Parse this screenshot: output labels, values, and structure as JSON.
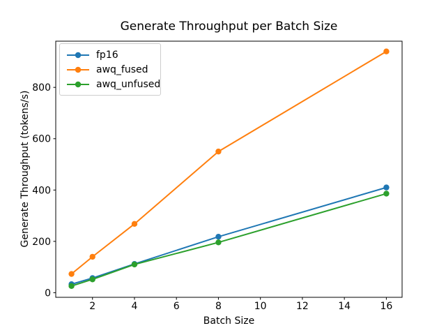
{
  "chart_data": {
    "type": "line",
    "title": "Generate Throughput per Batch Size",
    "xlabel": "Batch Size",
    "ylabel": "Generate Throughput (tokens/s)",
    "x": [
      1,
      2,
      4,
      8,
      16
    ],
    "series": [
      {
        "name": "fp16",
        "color": "#1f77b4",
        "marker": "circle",
        "values": [
          33,
          57,
          112,
          218,
          410
        ]
      },
      {
        "name": "awq_fused",
        "color": "#ff7f0e",
        "marker": "circle",
        "values": [
          73,
          140,
          268,
          550,
          940
        ]
      },
      {
        "name": "awq_unfused",
        "color": "#2ca02c",
        "marker": "circle",
        "values": [
          26,
          52,
          110,
          196,
          386
        ]
      }
    ],
    "x_ticks": [
      2,
      4,
      6,
      8,
      10,
      12,
      14,
      16
    ],
    "x_tick_labels": [
      "2",
      "4",
      "6",
      "8",
      "10",
      "12",
      "14",
      "16"
    ],
    "y_ticks": [
      0,
      200,
      400,
      600,
      800
    ],
    "y_tick_labels": [
      "0",
      "200",
      "400",
      "600",
      "800"
    ],
    "xlim": [
      0.25,
      16.75
    ],
    "ylim": [
      -18,
      980
    ],
    "grid": false,
    "legend_position": "upper left",
    "axis_color": "#000000",
    "legend_border_color": "#cccccc",
    "background_color": "#ffffff"
  }
}
